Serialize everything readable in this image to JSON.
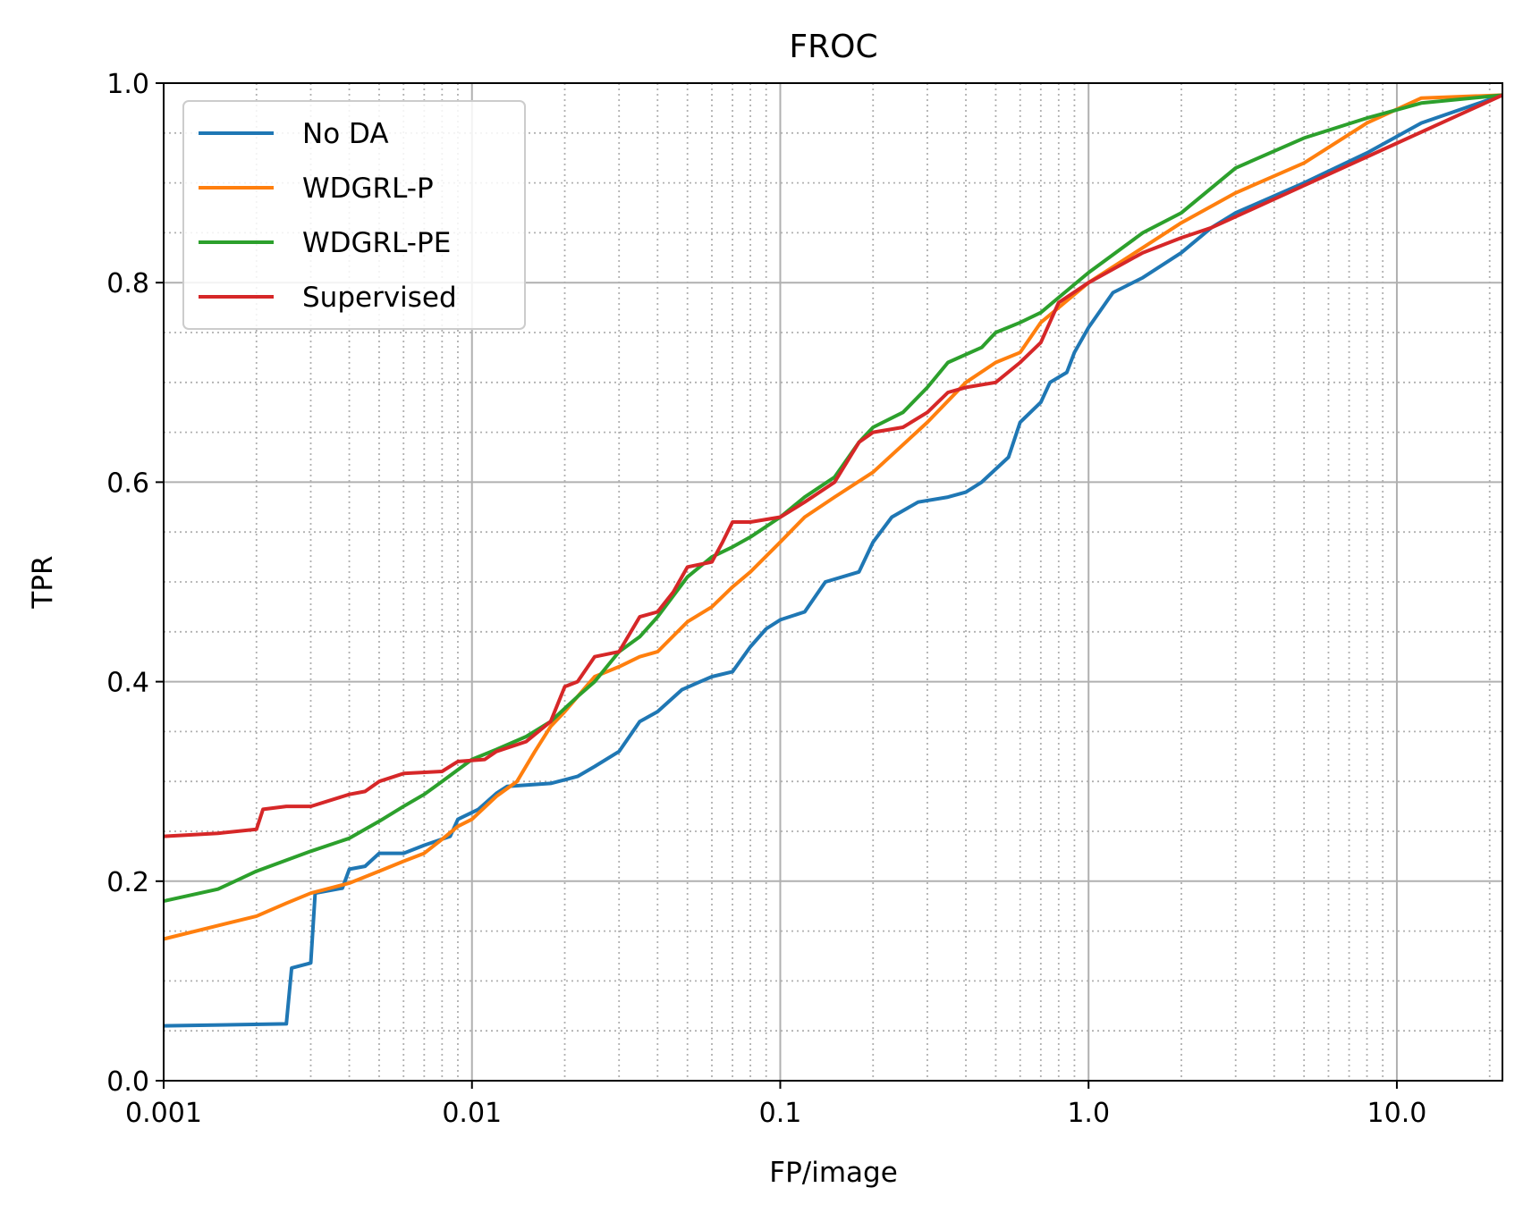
{
  "chart_data": {
    "type": "line",
    "title": "FROC",
    "xlabel": "FP/image",
    "ylabel": "TPR",
    "xscale": "log",
    "xlim": [
      0.001,
      22
    ],
    "ylim": [
      0.0,
      1.0
    ],
    "grid": true,
    "legend_position": "upper-left",
    "x_tick_labels": [
      {
        "value": 0.001,
        "label": "0.001"
      },
      {
        "value": 0.01,
        "label": "0.01"
      },
      {
        "value": 0.1,
        "label": "0.1"
      },
      {
        "value": 1.0,
        "label": "1.0"
      },
      {
        "value": 10.0,
        "label": "10.0"
      }
    ],
    "y_tick_labels": [
      {
        "value": 0.0,
        "label": "0.0"
      },
      {
        "value": 0.2,
        "label": "0.2"
      },
      {
        "value": 0.4,
        "label": "0.4"
      },
      {
        "value": 0.6,
        "label": "0.6"
      },
      {
        "value": 0.8,
        "label": "0.8"
      },
      {
        "value": 1.0,
        "label": "1.0"
      }
    ],
    "series": [
      {
        "name": "No DA",
        "color": "#1f77b4",
        "points": [
          [
            0.001,
            0.055
          ],
          [
            0.0025,
            0.057
          ],
          [
            0.0026,
            0.113
          ],
          [
            0.003,
            0.118
          ],
          [
            0.0031,
            0.188
          ],
          [
            0.0038,
            0.193
          ],
          [
            0.004,
            0.212
          ],
          [
            0.0045,
            0.215
          ],
          [
            0.005,
            0.228
          ],
          [
            0.006,
            0.228
          ],
          [
            0.007,
            0.236
          ],
          [
            0.0085,
            0.245
          ],
          [
            0.009,
            0.262
          ],
          [
            0.0105,
            0.272
          ],
          [
            0.012,
            0.288
          ],
          [
            0.013,
            0.295
          ],
          [
            0.018,
            0.298
          ],
          [
            0.022,
            0.305
          ],
          [
            0.025,
            0.315
          ],
          [
            0.03,
            0.33
          ],
          [
            0.035,
            0.36
          ],
          [
            0.04,
            0.37
          ],
          [
            0.048,
            0.392
          ],
          [
            0.055,
            0.4
          ],
          [
            0.06,
            0.405
          ],
          [
            0.07,
            0.41
          ],
          [
            0.08,
            0.435
          ],
          [
            0.09,
            0.453
          ],
          [
            0.1,
            0.462
          ],
          [
            0.12,
            0.47
          ],
          [
            0.14,
            0.5
          ],
          [
            0.18,
            0.51
          ],
          [
            0.2,
            0.54
          ],
          [
            0.23,
            0.565
          ],
          [
            0.28,
            0.58
          ],
          [
            0.35,
            0.585
          ],
          [
            0.4,
            0.59
          ],
          [
            0.45,
            0.6
          ],
          [
            0.55,
            0.625
          ],
          [
            0.6,
            0.66
          ],
          [
            0.7,
            0.68
          ],
          [
            0.75,
            0.7
          ],
          [
            0.85,
            0.71
          ],
          [
            0.9,
            0.73
          ],
          [
            1.0,
            0.755
          ],
          [
            1.2,
            0.79
          ],
          [
            1.5,
            0.805
          ],
          [
            2.0,
            0.83
          ],
          [
            2.5,
            0.855
          ],
          [
            3.0,
            0.87
          ],
          [
            5.0,
            0.9
          ],
          [
            8.0,
            0.93
          ],
          [
            12.0,
            0.96
          ],
          [
            22.0,
            0.988
          ]
        ]
      },
      {
        "name": "WDGRL-P",
        "color": "#ff7f0e",
        "points": [
          [
            0.001,
            0.142
          ],
          [
            0.002,
            0.165
          ],
          [
            0.0025,
            0.178
          ],
          [
            0.003,
            0.188
          ],
          [
            0.004,
            0.198
          ],
          [
            0.005,
            0.21
          ],
          [
            0.006,
            0.22
          ],
          [
            0.007,
            0.228
          ],
          [
            0.008,
            0.242
          ],
          [
            0.009,
            0.255
          ],
          [
            0.01,
            0.262
          ],
          [
            0.012,
            0.285
          ],
          [
            0.014,
            0.3
          ],
          [
            0.016,
            0.33
          ],
          [
            0.018,
            0.355
          ],
          [
            0.02,
            0.37
          ],
          [
            0.022,
            0.385
          ],
          [
            0.025,
            0.405
          ],
          [
            0.03,
            0.415
          ],
          [
            0.035,
            0.425
          ],
          [
            0.04,
            0.43
          ],
          [
            0.05,
            0.46
          ],
          [
            0.06,
            0.475
          ],
          [
            0.07,
            0.495
          ],
          [
            0.08,
            0.51
          ],
          [
            0.1,
            0.54
          ],
          [
            0.12,
            0.565
          ],
          [
            0.15,
            0.585
          ],
          [
            0.2,
            0.61
          ],
          [
            0.3,
            0.66
          ],
          [
            0.4,
            0.7
          ],
          [
            0.5,
            0.72
          ],
          [
            0.6,
            0.73
          ],
          [
            0.7,
            0.76
          ],
          [
            0.8,
            0.775
          ],
          [
            1.0,
            0.8
          ],
          [
            1.5,
            0.835
          ],
          [
            2.0,
            0.86
          ],
          [
            3.0,
            0.89
          ],
          [
            5.0,
            0.92
          ],
          [
            8.0,
            0.96
          ],
          [
            12.0,
            0.985
          ],
          [
            22.0,
            0.988
          ]
        ]
      },
      {
        "name": "WDGRL-PE",
        "color": "#2ca02c",
        "points": [
          [
            0.001,
            0.18
          ],
          [
            0.0015,
            0.192
          ],
          [
            0.002,
            0.21
          ],
          [
            0.003,
            0.23
          ],
          [
            0.004,
            0.243
          ],
          [
            0.005,
            0.26
          ],
          [
            0.006,
            0.275
          ],
          [
            0.007,
            0.287
          ],
          [
            0.008,
            0.3
          ],
          [
            0.01,
            0.322
          ],
          [
            0.012,
            0.332
          ],
          [
            0.015,
            0.345
          ],
          [
            0.018,
            0.36
          ],
          [
            0.022,
            0.385
          ],
          [
            0.025,
            0.4
          ],
          [
            0.03,
            0.43
          ],
          [
            0.035,
            0.445
          ],
          [
            0.04,
            0.465
          ],
          [
            0.05,
            0.505
          ],
          [
            0.06,
            0.525
          ],
          [
            0.07,
            0.535
          ],
          [
            0.08,
            0.545
          ],
          [
            0.1,
            0.565
          ],
          [
            0.12,
            0.585
          ],
          [
            0.15,
            0.605
          ],
          [
            0.18,
            0.64
          ],
          [
            0.2,
            0.655
          ],
          [
            0.25,
            0.67
          ],
          [
            0.3,
            0.695
          ],
          [
            0.35,
            0.72
          ],
          [
            0.45,
            0.735
          ],
          [
            0.5,
            0.75
          ],
          [
            0.6,
            0.76
          ],
          [
            0.7,
            0.77
          ],
          [
            0.8,
            0.785
          ],
          [
            1.0,
            0.81
          ],
          [
            1.5,
            0.85
          ],
          [
            2.0,
            0.87
          ],
          [
            3.0,
            0.915
          ],
          [
            5.0,
            0.945
          ],
          [
            8.0,
            0.965
          ],
          [
            12.0,
            0.98
          ],
          [
            22.0,
            0.988
          ]
        ]
      },
      {
        "name": "Supervised",
        "color": "#d62728",
        "points": [
          [
            0.001,
            0.245
          ],
          [
            0.0015,
            0.248
          ],
          [
            0.002,
            0.252
          ],
          [
            0.0021,
            0.272
          ],
          [
            0.0025,
            0.275
          ],
          [
            0.003,
            0.275
          ],
          [
            0.004,
            0.287
          ],
          [
            0.0045,
            0.29
          ],
          [
            0.005,
            0.3
          ],
          [
            0.006,
            0.308
          ],
          [
            0.008,
            0.31
          ],
          [
            0.009,
            0.32
          ],
          [
            0.011,
            0.322
          ],
          [
            0.012,
            0.33
          ],
          [
            0.015,
            0.34
          ],
          [
            0.018,
            0.36
          ],
          [
            0.02,
            0.395
          ],
          [
            0.022,
            0.4
          ],
          [
            0.025,
            0.425
          ],
          [
            0.03,
            0.43
          ],
          [
            0.035,
            0.465
          ],
          [
            0.04,
            0.47
          ],
          [
            0.045,
            0.49
          ],
          [
            0.05,
            0.515
          ],
          [
            0.06,
            0.52
          ],
          [
            0.065,
            0.54
          ],
          [
            0.07,
            0.56
          ],
          [
            0.08,
            0.56
          ],
          [
            0.1,
            0.565
          ],
          [
            0.12,
            0.58
          ],
          [
            0.15,
            0.6
          ],
          [
            0.18,
            0.64
          ],
          [
            0.2,
            0.65
          ],
          [
            0.25,
            0.655
          ],
          [
            0.3,
            0.67
          ],
          [
            0.35,
            0.69
          ],
          [
            0.4,
            0.695
          ],
          [
            0.5,
            0.7
          ],
          [
            0.6,
            0.72
          ],
          [
            0.7,
            0.74
          ],
          [
            0.8,
            0.78
          ],
          [
            1.0,
            0.8
          ],
          [
            1.5,
            0.83
          ],
          [
            2.0,
            0.845
          ],
          [
            2.5,
            0.855
          ],
          [
            22.0,
            0.988
          ]
        ]
      }
    ]
  }
}
